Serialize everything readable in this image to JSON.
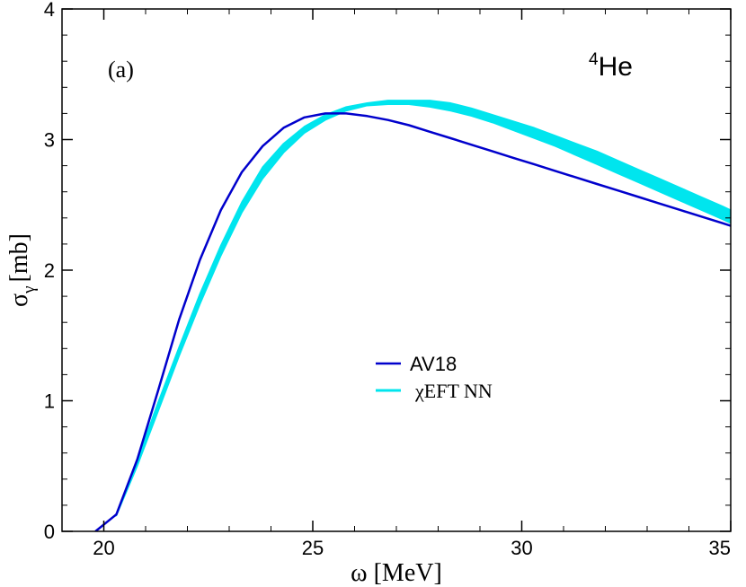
{
  "chart_data": {
    "type": "line",
    "title": "",
    "panel_label": "(a)",
    "nucleus": {
      "mass_number": "4",
      "symbol": "He"
    },
    "xlabel": {
      "symbol": "ω",
      "unit": "[MeV]"
    },
    "ylabel": {
      "symbol": "σ",
      "subscript": "γ",
      "unit": "[mb]"
    },
    "xlim": [
      19,
      35
    ],
    "ylim": [
      0,
      4
    ],
    "x_major_ticks": [
      20,
      25,
      30,
      35
    ],
    "x_tick_labels": [
      "20",
      "25",
      "30",
      "35"
    ],
    "y_major_ticks": [
      0,
      1,
      2,
      3,
      4
    ],
    "y_tick_labels": [
      "0",
      "1",
      "2",
      "3",
      "4"
    ],
    "x_minor_step": 1,
    "y_minor_step": 0.2,
    "grid": false,
    "legend_position": "center",
    "series": [
      {
        "name": "AV18",
        "style": "line",
        "color": "#0000cc",
        "x": [
          19.8,
          20.3,
          20.8,
          21.3,
          21.8,
          22.3,
          22.8,
          23.3,
          23.8,
          24.3,
          24.8,
          25.3,
          25.8,
          26.3,
          26.8,
          27.3,
          27.8,
          28.3,
          28.8,
          29.3,
          29.8,
          30.3,
          30.8,
          31.3,
          31.8,
          32.3,
          32.8,
          33.3,
          33.8,
          34.3,
          34.8,
          35.0
        ],
        "y": [
          0.0,
          0.13,
          0.55,
          1.08,
          1.62,
          2.08,
          2.46,
          2.75,
          2.95,
          3.09,
          3.17,
          3.2,
          3.2,
          3.18,
          3.15,
          3.11,
          3.06,
          3.01,
          2.96,
          2.91,
          2.86,
          2.81,
          2.76,
          2.71,
          2.66,
          2.61,
          2.56,
          2.51,
          2.46,
          2.41,
          2.36,
          2.34
        ]
      },
      {
        "name": "χEFT NN",
        "style": "band",
        "color": "#00e5ee",
        "x": [
          20.3,
          20.8,
          21.3,
          21.8,
          22.3,
          22.8,
          23.3,
          23.8,
          24.3,
          24.8,
          25.3,
          25.8,
          26.3,
          26.8,
          27.3,
          27.8,
          28.3,
          28.8,
          29.3,
          29.8,
          30.3,
          30.8,
          31.3,
          31.8,
          32.3,
          32.8,
          33.3,
          33.8,
          34.3,
          34.8,
          35.0
        ],
        "y_low": [
          0.12,
          0.5,
          0.92,
          1.34,
          1.74,
          2.11,
          2.44,
          2.7,
          2.9,
          3.05,
          3.15,
          3.22,
          3.26,
          3.27,
          3.27,
          3.25,
          3.22,
          3.18,
          3.13,
          3.07,
          3.01,
          2.95,
          2.88,
          2.81,
          2.74,
          2.67,
          2.6,
          2.53,
          2.46,
          2.39,
          2.36
        ],
        "y_high": [
          0.12,
          0.55,
          0.99,
          1.41,
          1.82,
          2.19,
          2.52,
          2.79,
          2.97,
          3.1,
          3.19,
          3.25,
          3.28,
          3.3,
          3.3,
          3.3,
          3.28,
          3.24,
          3.19,
          3.14,
          3.09,
          3.03,
          2.97,
          2.91,
          2.84,
          2.77,
          2.7,
          2.63,
          2.56,
          2.49,
          2.46
        ]
      }
    ]
  }
}
